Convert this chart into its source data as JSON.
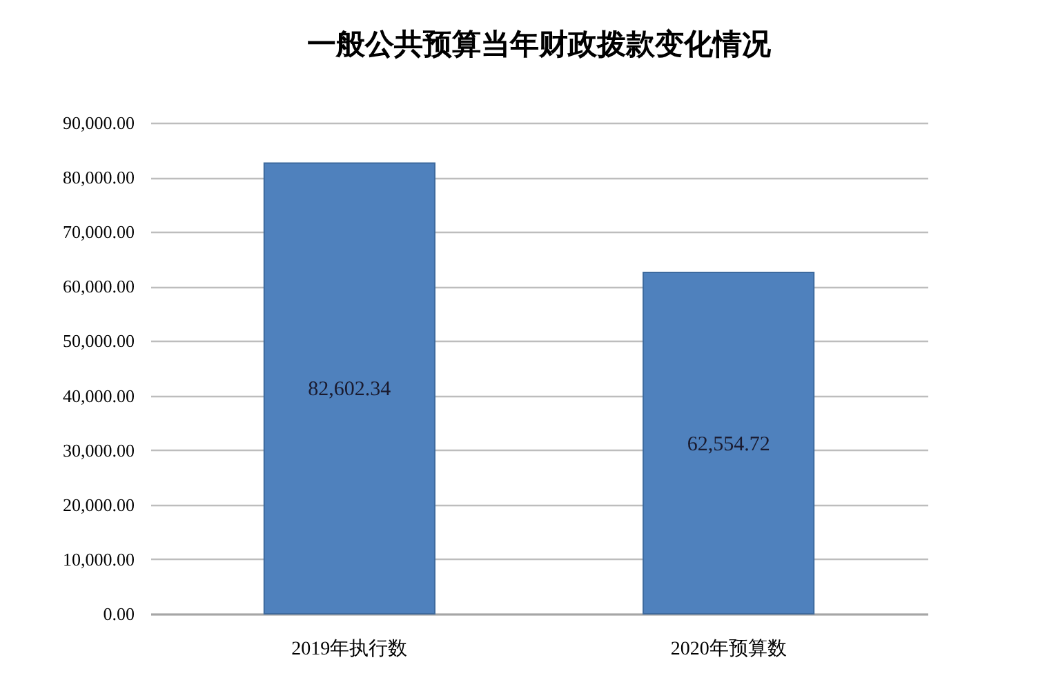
{
  "chart_data": {
    "type": "bar",
    "title": "一般公共预算当年财政拨款变化情况",
    "categories": [
      "2019年执行数",
      "2020年预算数"
    ],
    "values": [
      82602.34,
      62554.72
    ],
    "value_labels": [
      "82,602.34",
      "62,554.72"
    ],
    "color": "#4f81bd",
    "ylim": [
      0,
      90000
    ],
    "yticks": [
      {
        "value": 0,
        "label": "0.00"
      },
      {
        "value": 10000,
        "label": "10,000.00"
      },
      {
        "value": 20000,
        "label": "20,000.00"
      },
      {
        "value": 30000,
        "label": "30,000.00"
      },
      {
        "value": 40000,
        "label": "40,000.00"
      },
      {
        "value": 50000,
        "label": "50,000.00"
      },
      {
        "value": 60000,
        "label": "60,000.00"
      },
      {
        "value": 70000,
        "label": "70,000.00"
      },
      {
        "value": 80000,
        "label": "80,000.00"
      },
      {
        "value": 90000,
        "label": "90,000.00"
      }
    ],
    "grid": "y"
  }
}
